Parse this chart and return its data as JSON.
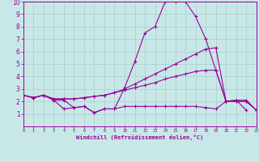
{
  "xlabel": "Windchill (Refroidissement éolien,°C)",
  "xlim": [
    0,
    23
  ],
  "ylim": [
    0,
    10
  ],
  "xticks": [
    0,
    1,
    2,
    3,
    4,
    5,
    6,
    7,
    8,
    9,
    10,
    11,
    12,
    13,
    14,
    15,
    16,
    17,
    18,
    19,
    20,
    21,
    22,
    23
  ],
  "yticks": [
    1,
    2,
    3,
    4,
    5,
    6,
    7,
    8,
    9,
    10
  ],
  "background_color": "#c8e8e8",
  "line_color": "#990099",
  "grid_color": "#aacccc",
  "series": [
    {
      "x": [
        0,
        1,
        2,
        3,
        4,
        5,
        6,
        7,
        8,
        9,
        10,
        11,
        12,
        13,
        14,
        15,
        16,
        17,
        18,
        19,
        20,
        21,
        22
      ],
      "y": [
        2.5,
        2.3,
        2.5,
        2.1,
        1.4,
        1.5,
        1.6,
        1.1,
        1.4,
        1.4,
        1.6,
        1.6,
        1.6,
        1.6,
        1.6,
        1.6,
        1.6,
        1.6,
        1.5,
        1.4,
        2.0,
        2.1,
        1.3
      ]
    },
    {
      "x": [
        0,
        1,
        2,
        3,
        4,
        5,
        6,
        7,
        8,
        9,
        10,
        11,
        12,
        13,
        14,
        15,
        16,
        17,
        18,
        19,
        20,
        21,
        22,
        23
      ],
      "y": [
        2.5,
        2.3,
        2.5,
        2.1,
        2.1,
        1.5,
        1.6,
        1.1,
        1.4,
        1.4,
        3.1,
        5.2,
        7.5,
        8.0,
        10.0,
        10.0,
        10.0,
        8.8,
        7.0,
        4.5,
        2.0,
        2.1,
        2.1,
        1.3
      ]
    },
    {
      "x": [
        0,
        1,
        2,
        3,
        4,
        5,
        6,
        7,
        8,
        9,
        10,
        11,
        12,
        13,
        14,
        15,
        16,
        17,
        18,
        19,
        20,
        21,
        22,
        23
      ],
      "y": [
        2.5,
        2.3,
        2.5,
        2.2,
        2.2,
        2.2,
        2.3,
        2.4,
        2.5,
        2.7,
        3.0,
        3.4,
        3.8,
        4.2,
        4.6,
        5.0,
        5.4,
        5.8,
        6.2,
        6.3,
        2.0,
        2.0,
        2.0,
        1.3
      ]
    },
    {
      "x": [
        0,
        1,
        2,
        3,
        4,
        5,
        6,
        7,
        8,
        9,
        10,
        11,
        12,
        13,
        14,
        15,
        16,
        17,
        18,
        19,
        20,
        21,
        22,
        23
      ],
      "y": [
        2.5,
        2.3,
        2.5,
        2.2,
        2.2,
        2.2,
        2.3,
        2.4,
        2.5,
        2.7,
        2.9,
        3.1,
        3.3,
        3.5,
        3.8,
        4.0,
        4.2,
        4.4,
        4.5,
        4.5,
        2.0,
        2.0,
        2.0,
        1.3
      ]
    }
  ]
}
